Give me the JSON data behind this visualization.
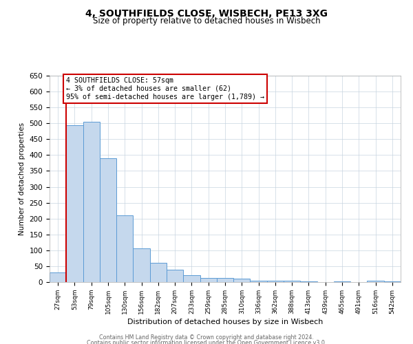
{
  "title": "4, SOUTHFIELDS CLOSE, WISBECH, PE13 3XG",
  "subtitle": "Size of property relative to detached houses in Wisbech",
  "xlabel": "Distribution of detached houses by size in Wisbech",
  "ylabel": "Number of detached properties",
  "bin_labels": [
    "27sqm",
    "53sqm",
    "79sqm",
    "105sqm",
    "130sqm",
    "156sqm",
    "182sqm",
    "207sqm",
    "233sqm",
    "259sqm",
    "285sqm",
    "310sqm",
    "336sqm",
    "362sqm",
    "388sqm",
    "413sqm",
    "439sqm",
    "465sqm",
    "491sqm",
    "516sqm",
    "542sqm"
  ],
  "bar_values": [
    30,
    493,
    505,
    390,
    210,
    107,
    60,
    40,
    22,
    14,
    13,
    11,
    4,
    5,
    5,
    2,
    0,
    2,
    0,
    4,
    2
  ],
  "bar_color": "#c5d8ed",
  "bar_edge_color": "#5b9bd5",
  "vline_color": "#cc0000",
  "annotation_text": "4 SOUTHFIELDS CLOSE: 57sqm\n← 3% of detached houses are smaller (62)\n95% of semi-detached houses are larger (1,789) →",
  "annotation_box_color": "#ffffff",
  "annotation_box_edge_color": "#cc0000",
  "ylim": [
    0,
    650
  ],
  "yticks": [
    0,
    50,
    100,
    150,
    200,
    250,
    300,
    350,
    400,
    450,
    500,
    550,
    600,
    650
  ],
  "footer_line1": "Contains HM Land Registry data © Crown copyright and database right 2024.",
  "footer_line2": "Contains public sector information licensed under the Open Government Licence v3.0.",
  "background_color": "#ffffff",
  "grid_color": "#c8d4e0"
}
